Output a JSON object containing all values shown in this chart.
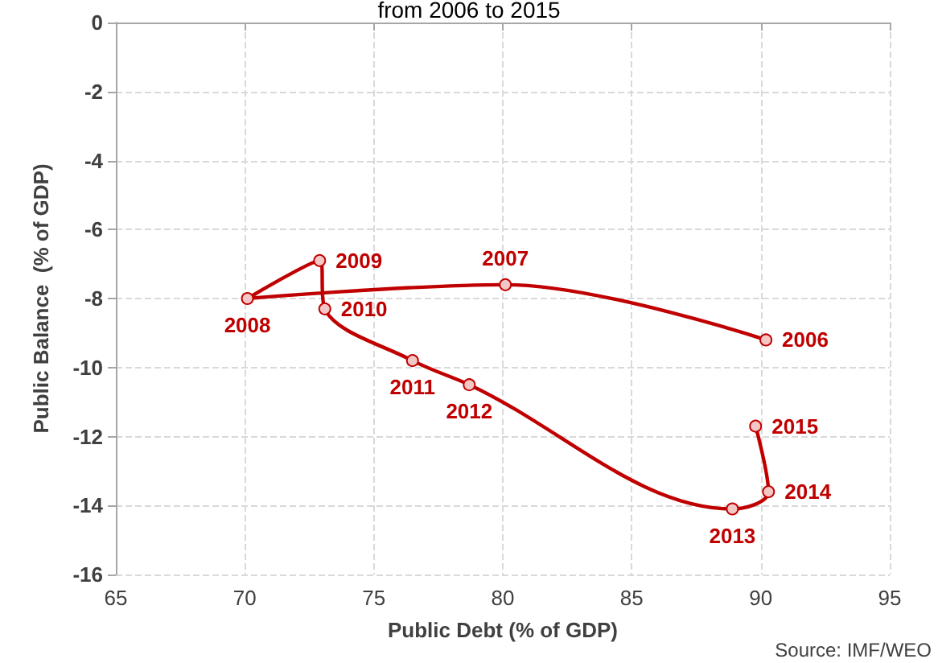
{
  "chart_data": {
    "type": "line",
    "title": "from 2006 to 2015",
    "xlabel": "Public Debt (% of GDP)",
    "ylabel": "Public Balance  (% of GDP)",
    "annotations": [
      "Source: IMF/WEO",
      {
        "text": "2006",
        "x": 90.2,
        "y": -9.2
      },
      {
        "text": "2007",
        "x": 80.1,
        "y": -7.6
      },
      {
        "text": "2008",
        "x": 70.1,
        "y": -8.0
      },
      {
        "text": "2009",
        "x": 72.9,
        "y": -6.9
      },
      {
        "text": "2010",
        "x": 73.1,
        "y": -8.3
      },
      {
        "text": "2011",
        "x": 76.5,
        "y": -9.8
      },
      {
        "text": "2012",
        "x": 78.7,
        "y": -10.5
      },
      {
        "text": "2013",
        "x": 88.9,
        "y": -14.1
      },
      {
        "text": "2014",
        "x": 90.3,
        "y": -13.6
      },
      {
        "text": "2015",
        "x": 89.8,
        "y": -11.7
      }
    ],
    "series": [
      {
        "color": "#c00000",
        "x": [
          90.2,
          80.1,
          70.1,
          72.9,
          73.1,
          76.5,
          78.7,
          88.9,
          90.3,
          89.8
        ],
        "values": [
          -9.2,
          -7.6,
          -8.0,
          -6.9,
          -8.3,
          -9.8,
          -10.5,
          -14.1,
          -13.6,
          -11.7
        ]
      }
    ],
    "xlim": [
      65,
      95
    ],
    "xticks": [
      65,
      70,
      75,
      80,
      85,
      90,
      95
    ],
    "ylim": [
      -16,
      0
    ],
    "yticks": [
      0,
      -2,
      -4,
      -6,
      -8,
      -10,
      -12,
      -14,
      -16
    ],
    "grid": true,
    "marker": "circle",
    "line_style": "solid"
  }
}
